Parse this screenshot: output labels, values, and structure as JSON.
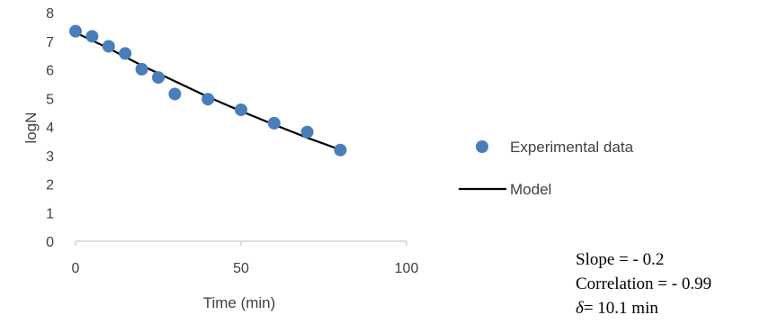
{
  "chart_data": {
    "type": "scatter",
    "xlabel": "Time (min)",
    "ylabel": "logN",
    "xlim": [
      0,
      100
    ],
    "ylim": [
      0,
      8
    ],
    "x_ticks": [
      0,
      50,
      100
    ],
    "y_ticks": [
      0,
      1,
      2,
      3,
      4,
      5,
      6,
      7,
      8
    ],
    "grid": false,
    "legend_position": "right",
    "series": [
      {
        "name": "Experimental data",
        "kind": "scatter",
        "color": "#4a7ebb",
        "x": [
          0,
          5,
          10,
          15,
          20,
          25,
          30,
          40,
          50,
          60,
          70,
          80
        ],
        "y": [
          7.35,
          7.17,
          6.82,
          6.57,
          6.02,
          5.73,
          5.15,
          4.97,
          4.6,
          4.13,
          3.82,
          3.19
        ]
      },
      {
        "name": "Model",
        "kind": "line",
        "color": "#000000",
        "x": [
          0,
          10,
          20,
          30,
          40,
          50,
          60,
          70,
          80
        ],
        "y": [
          7.3,
          6.75,
          6.15,
          5.6,
          5.05,
          4.55,
          4.08,
          3.62,
          3.2
        ]
      }
    ]
  },
  "stats": {
    "slope": "Slope = - 0.2",
    "correlation": "Correlation = - 0.99",
    "delta_symbol": "δ",
    "delta_value": "= 10.1 min"
  }
}
